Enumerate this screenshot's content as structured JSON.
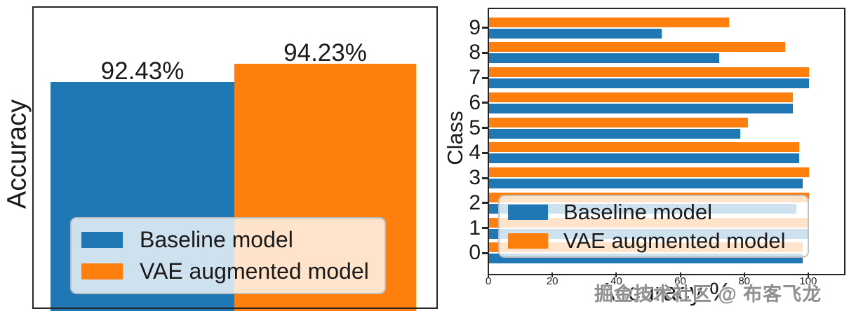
{
  "watermark": "掘金技术社区 @ 布客飞龙",
  "accent_colors": {
    "baseline_blue": "#1f77b4",
    "vae_orange": "#ff7f0e"
  },
  "chart_data": [
    {
      "type": "bar",
      "title": "",
      "xlabel": "",
      "ylabel": "Accuracy",
      "categories": [
        "Baseline model",
        "VAE augmented model"
      ],
      "values": [
        92.43,
        94.23
      ],
      "data_labels": [
        "92.43%",
        "94.23%"
      ],
      "colors": [
        "#1f77b4",
        "#ff7f0e"
      ],
      "ylim": [
        70,
        100
      ],
      "grid": false,
      "axis_tick_labels_visible": false,
      "legend": [
        "Baseline model",
        "VAE augmented model"
      ],
      "legend_position": "lower left"
    },
    {
      "type": "bar",
      "orientation": "horizontal",
      "title": "",
      "xlabel": "Accuracy %",
      "ylabel": "Class",
      "categories": [
        0,
        1,
        2,
        3,
        4,
        5,
        6,
        7,
        8,
        9
      ],
      "series": [
        {
          "name": "Baseline model",
          "color": "#1f77b4",
          "values": [
            98,
            100,
            96,
            98,
            97,
            78.5,
            95,
            100,
            72,
            54
          ]
        },
        {
          "name": "VAE augmented model",
          "color": "#ff7f0e",
          "values": [
            98,
            99.5,
            100,
            100,
            97,
            81,
            95,
            100,
            92.5,
            75
          ]
        }
      ],
      "xticks": [
        0,
        20,
        40,
        60,
        80,
        100
      ],
      "xtick_labels": [
        "0",
        "20",
        "40",
        "60",
        "80",
        "100"
      ],
      "xlim": [
        0,
        111
      ],
      "grid": false,
      "legend": [
        "Baseline model",
        "VAE augmented model"
      ],
      "legend_position": "lower center"
    }
  ]
}
